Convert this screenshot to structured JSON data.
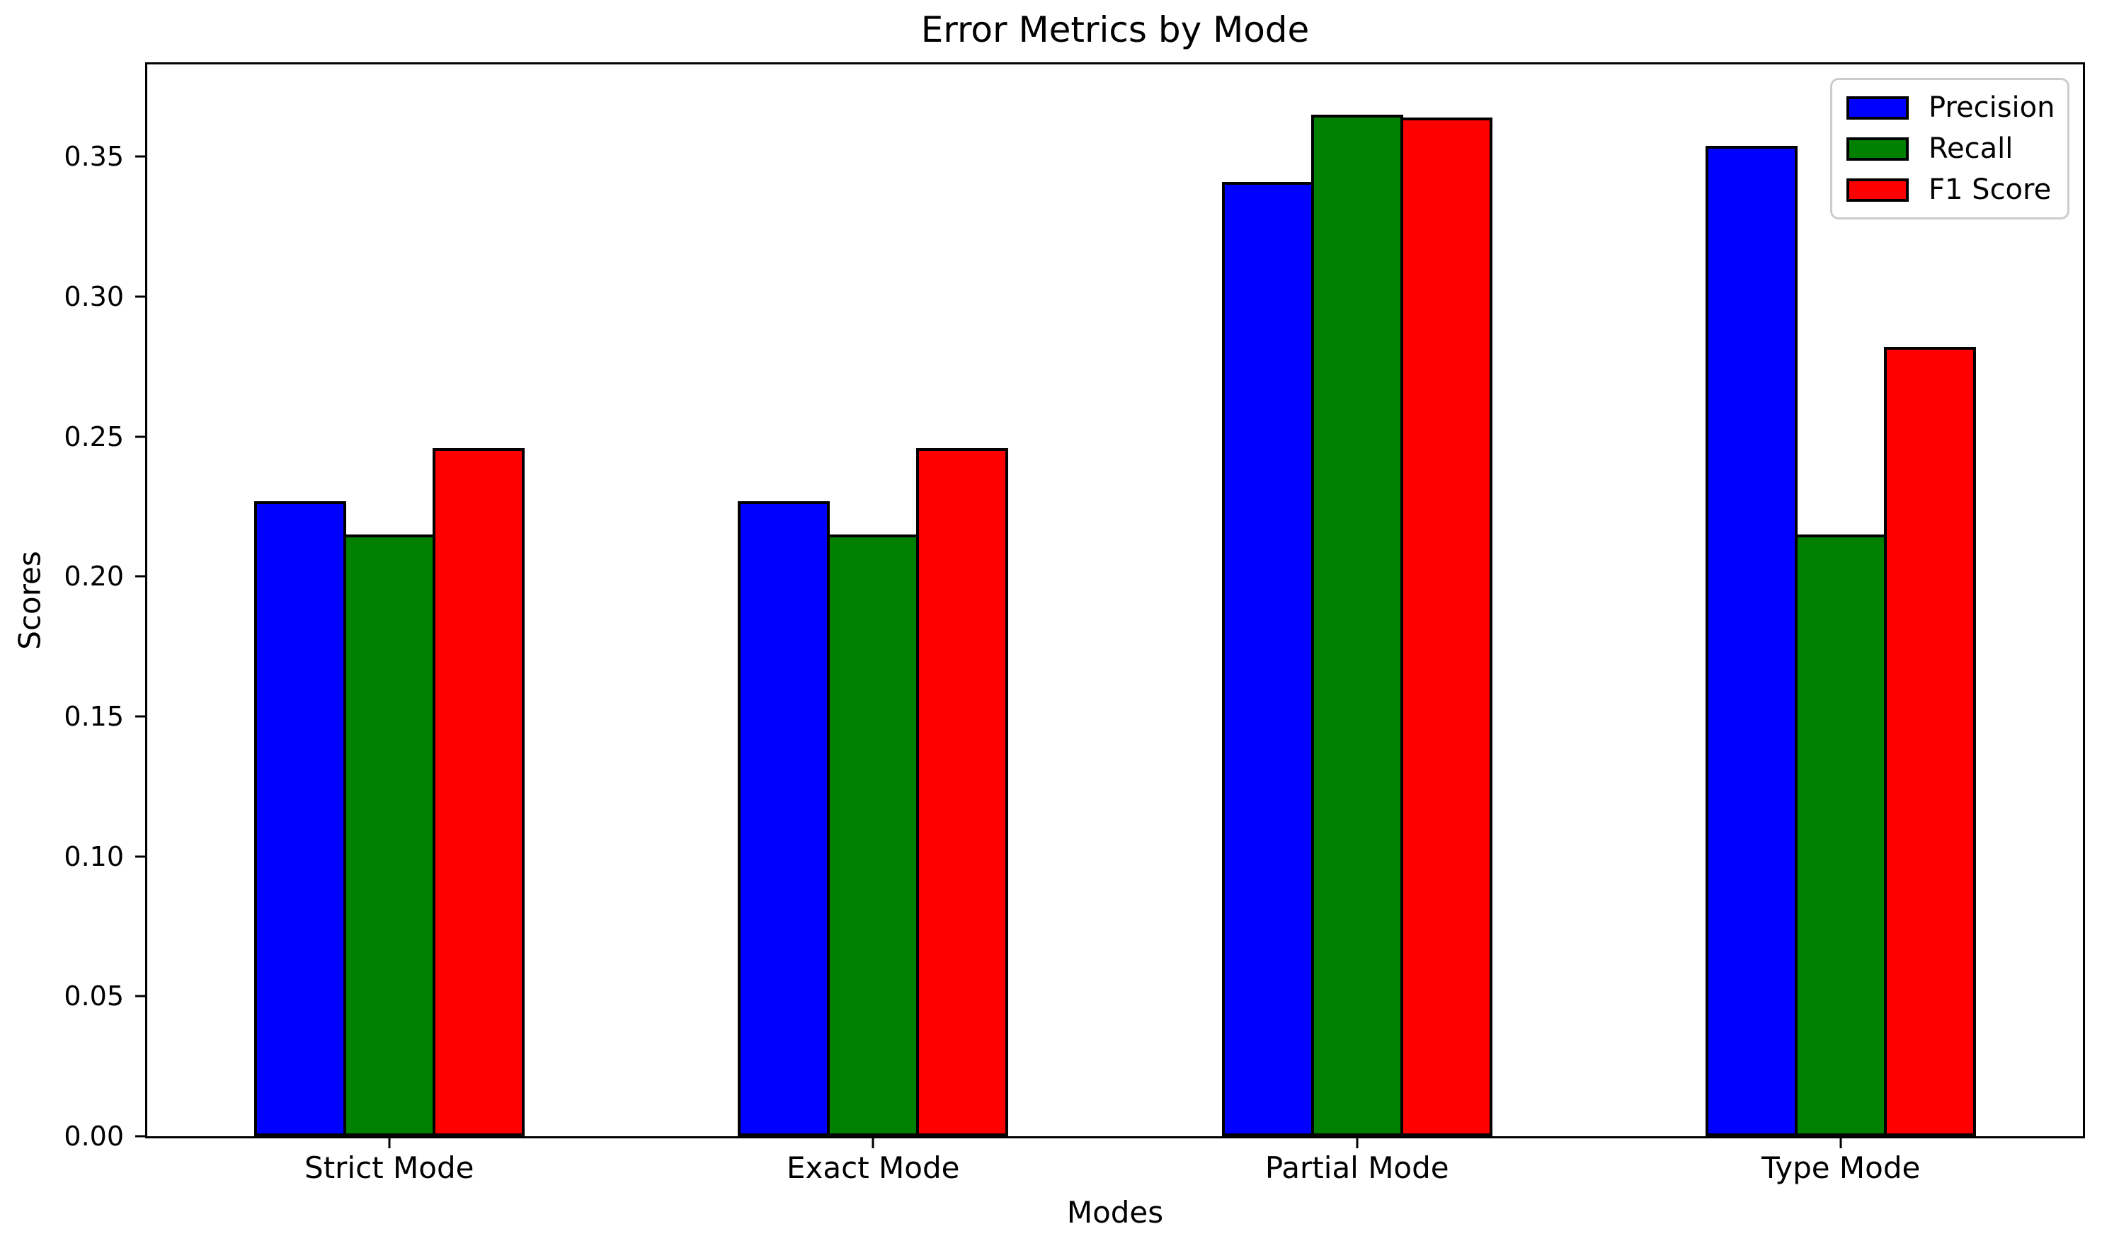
{
  "figure": {
    "background": "#ffffff"
  },
  "chart_data": {
    "type": "bar",
    "title": "Error Metrics by Mode",
    "xlabel": "Modes",
    "ylabel": "Scores",
    "categories": [
      "Strict Mode",
      "Exact Mode",
      "Partial Mode",
      "Type Mode"
    ],
    "series": [
      {
        "name": "Precision",
        "color": "#0000ff",
        "values": [
          0.227,
          0.227,
          0.341,
          0.354
        ]
      },
      {
        "name": "Recall",
        "color": "#008000",
        "values": [
          0.215,
          0.215,
          0.365,
          0.215
        ]
      },
      {
        "name": "F1 Score",
        "color": "#ff0000",
        "values": [
          0.246,
          0.246,
          0.364,
          0.282
        ]
      }
    ],
    "yticks": [
      0.0,
      0.05,
      0.1,
      0.15,
      0.2,
      0.25,
      0.3,
      0.35
    ],
    "ytick_decimals": 2,
    "ylim": [
      0,
      0.383
    ],
    "xlim_category_units": [
      -0.5,
      3.5
    ],
    "bar_edge_color": "#000000",
    "grid": false,
    "legend": {
      "position": "upper right",
      "border_color": "#cccccc",
      "background": "#ffffff"
    }
  }
}
